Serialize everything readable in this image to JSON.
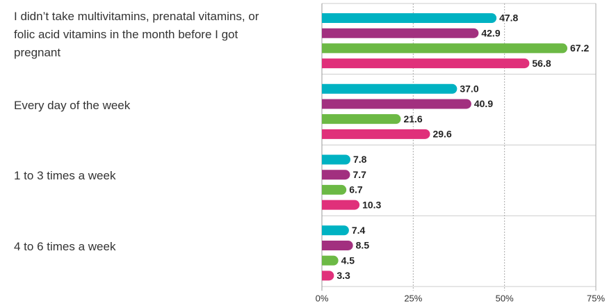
{
  "chart_data": {
    "type": "bar",
    "orientation": "horizontal",
    "categories": [
      "I didn’t take multivitamins, prenatal vitamins, or folic acid vitamins in the month before I got pregnant",
      "Every day of the week",
      "1 to 3 times a week",
      "4 to 6 times a week"
    ],
    "series": [
      {
        "color": "#00b2c2",
        "values": [
          47.8,
          37.0,
          7.8,
          7.4
        ],
        "value_labels": [
          "47.8",
          "37.0",
          "7.8",
          "7.4"
        ]
      },
      {
        "color": "#a2307f",
        "values": [
          42.9,
          40.9,
          7.7,
          8.5
        ],
        "value_labels": [
          "42.9",
          "40.9",
          "7.7",
          "8.5"
        ]
      },
      {
        "color": "#6cb945",
        "values": [
          67.2,
          21.6,
          6.7,
          4.5
        ],
        "value_labels": [
          "67.2",
          "21.6",
          "6.7",
          "4.5"
        ]
      },
      {
        "color": "#e0307a",
        "values": [
          56.8,
          29.6,
          10.3,
          3.3
        ],
        "value_labels": [
          "56.8",
          "29.6",
          "10.3",
          "3.3"
        ]
      }
    ],
    "xlim": [
      0,
      75
    ],
    "xticks": [
      {
        "value": 0,
        "label": "0%"
      },
      {
        "value": 25,
        "label": "25%"
      },
      {
        "value": 50,
        "label": "50%"
      },
      {
        "value": 75,
        "label": "75%"
      }
    ],
    "grid": true
  }
}
